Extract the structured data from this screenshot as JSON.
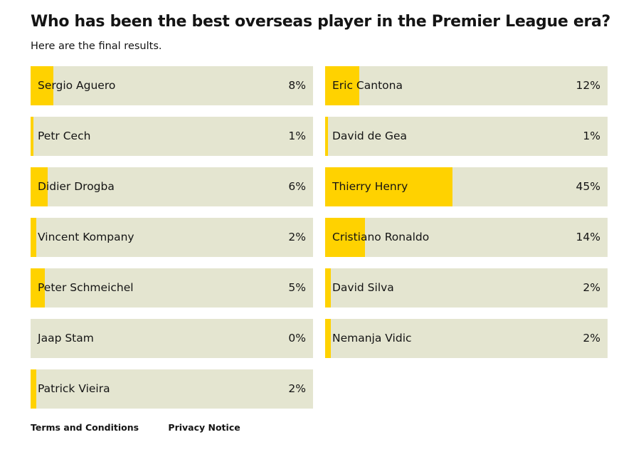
{
  "title": "Who has been the best overseas player in the Premier League era?",
  "subtitle": "Here are the final results.",
  "colors": {
    "fill": "#ffd200",
    "track": "#e4e5d0"
  },
  "left": [
    {
      "name": "Sergio Aguero",
      "pct": "8%",
      "value": 8
    },
    {
      "name": "Petr Cech",
      "pct": "1%",
      "value": 1
    },
    {
      "name": "Didier Drogba",
      "pct": "6%",
      "value": 6
    },
    {
      "name": "Vincent Kompany",
      "pct": "2%",
      "value": 2
    },
    {
      "name": "Peter Schmeichel",
      "pct": "5%",
      "value": 5
    },
    {
      "name": "Jaap Stam",
      "pct": "0%",
      "value": 0
    },
    {
      "name": "Patrick Vieira",
      "pct": "2%",
      "value": 2
    }
  ],
  "right": [
    {
      "name": "Eric Cantona",
      "pct": "12%",
      "value": 12
    },
    {
      "name": "David de Gea",
      "pct": "1%",
      "value": 1
    },
    {
      "name": "Thierry Henry",
      "pct": "45%",
      "value": 45
    },
    {
      "name": "Cristiano Ronaldo",
      "pct": "14%",
      "value": 14
    },
    {
      "name": "David Silva",
      "pct": "2%",
      "value": 2
    },
    {
      "name": "Nemanja Vidic",
      "pct": "2%",
      "value": 2
    }
  ],
  "footer": {
    "terms": "Terms and Conditions",
    "privacy": "Privacy Notice"
  }
}
